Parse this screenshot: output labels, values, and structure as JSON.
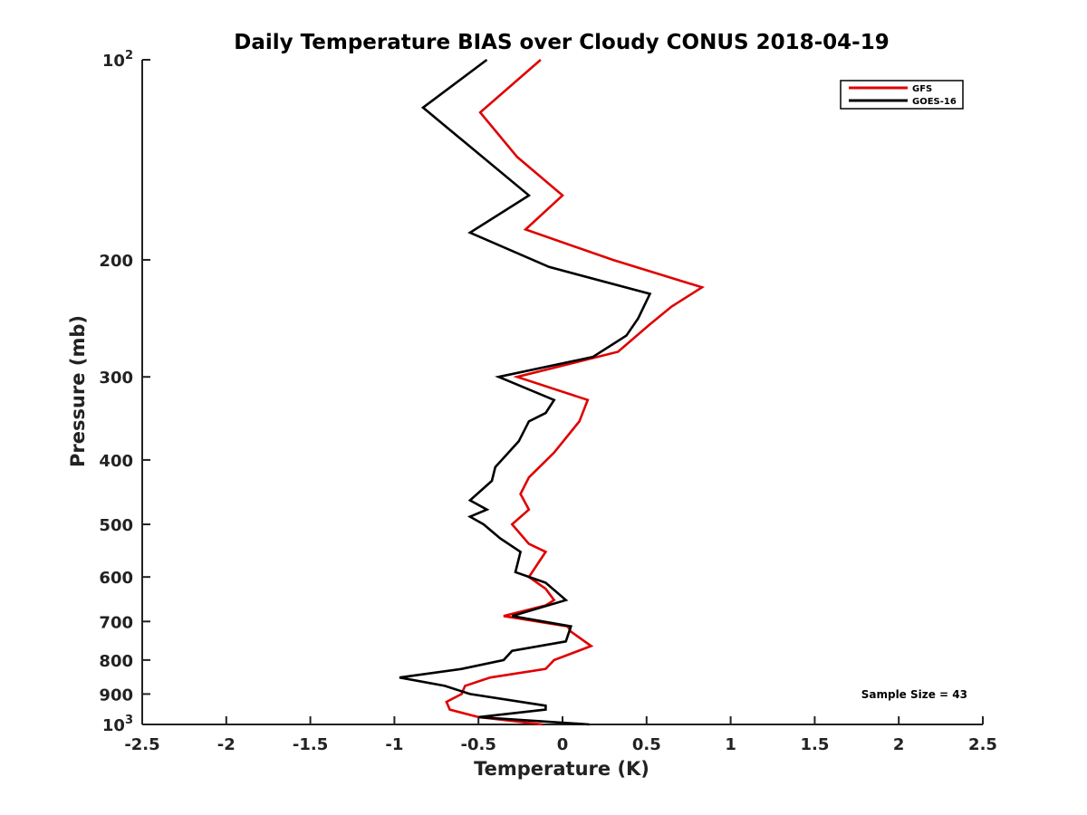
{
  "chart_data": {
    "type": "line",
    "title": "Daily Temperature BIAS over Cloudy CONUS 2018-04-19",
    "xlabel": "Temperature (K)",
    "ylabel": "Pressure (mb)",
    "xlim": [
      -2.5,
      2.5
    ],
    "ylim": [
      1000,
      100
    ],
    "yscale": "log",
    "y_reversed": true,
    "x_ticks": [
      "-2.5",
      "-2",
      "-1.5",
      "-1",
      "-0.5",
      "0",
      "0.5",
      "1",
      "1.5",
      "2",
      "2.5"
    ],
    "y_ticks": [
      {
        "value": 100,
        "base": "10",
        "exp": "2"
      },
      {
        "value": 200,
        "label": "200"
      },
      {
        "value": 300,
        "label": "300"
      },
      {
        "value": 400,
        "label": "400"
      },
      {
        "value": 500,
        "label": "500"
      },
      {
        "value": 600,
        "label": "600"
      },
      {
        "value": 700,
        "label": "700"
      },
      {
        "value": 800,
        "label": "800"
      },
      {
        "value": 900,
        "label": "900"
      },
      {
        "value": 1000,
        "base": "10",
        "exp": "3"
      }
    ],
    "grid": false,
    "legend_position": "top-right",
    "annotation": "Sample Size = 43",
    "series": [
      {
        "name": "GFS",
        "color": "#e00000",
        "points": [
          [
            -0.12,
            1000
          ],
          [
            -0.5,
            975
          ],
          [
            -0.67,
            950
          ],
          [
            -0.69,
            925
          ],
          [
            -0.6,
            900
          ],
          [
            -0.58,
            875
          ],
          [
            -0.43,
            850
          ],
          [
            -0.1,
            825
          ],
          [
            -0.05,
            800
          ],
          [
            0.17,
            762
          ],
          [
            0.05,
            725
          ],
          [
            0.03,
            712
          ],
          [
            -0.35,
            687
          ],
          [
            -0.1,
            662
          ],
          [
            -0.05,
            650
          ],
          [
            -0.1,
            625
          ],
          [
            -0.2,
            600
          ],
          [
            -0.1,
            550
          ],
          [
            -0.2,
            535
          ],
          [
            -0.3,
            500
          ],
          [
            -0.2,
            475
          ],
          [
            -0.25,
            450
          ],
          [
            -0.2,
            425
          ],
          [
            -0.05,
            390
          ],
          [
            0.1,
            350
          ],
          [
            0.15,
            325
          ],
          [
            -0.27,
            300
          ],
          [
            0.33,
            275
          ],
          [
            0.52,
            250
          ],
          [
            0.65,
            235
          ],
          [
            0.83,
            220
          ],
          [
            0.3,
            200
          ],
          [
            -0.22,
            180
          ],
          [
            0.0,
            160
          ],
          [
            -0.27,
            140
          ],
          [
            -0.49,
            120
          ],
          [
            -0.13,
            100
          ]
        ]
      },
      {
        "name": "GOES-16",
        "color": "#000000",
        "points": [
          [
            0.16,
            1000
          ],
          [
            -0.5,
            975
          ],
          [
            -0.1,
            950
          ],
          [
            -0.1,
            937
          ],
          [
            -0.55,
            900
          ],
          [
            -0.7,
            875
          ],
          [
            -0.97,
            850
          ],
          [
            -0.6,
            825
          ],
          [
            -0.35,
            800
          ],
          [
            -0.3,
            775
          ],
          [
            0.02,
            750
          ],
          [
            0.05,
            712
          ],
          [
            -0.3,
            687
          ],
          [
            0.02,
            650
          ],
          [
            -0.1,
            612
          ],
          [
            -0.28,
            590
          ],
          [
            -0.25,
            550
          ],
          [
            -0.37,
            525
          ],
          [
            -0.47,
            500
          ],
          [
            -0.55,
            487
          ],
          [
            -0.45,
            475
          ],
          [
            -0.55,
            460
          ],
          [
            -0.42,
            430
          ],
          [
            -0.4,
            410
          ],
          [
            -0.26,
            375
          ],
          [
            -0.2,
            350
          ],
          [
            -0.1,
            340
          ],
          [
            -0.05,
            325
          ],
          [
            -0.38,
            300
          ],
          [
            0.18,
            280
          ],
          [
            0.38,
            260
          ],
          [
            0.45,
            245
          ],
          [
            0.52,
            225
          ],
          [
            -0.08,
            205
          ],
          [
            -0.55,
            182
          ],
          [
            -0.2,
            160
          ],
          [
            -0.83,
            118
          ],
          [
            -0.45,
            100
          ]
        ]
      }
    ]
  }
}
